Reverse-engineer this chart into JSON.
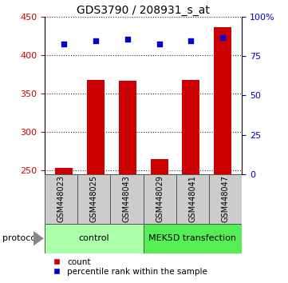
{
  "title": "GDS3790 / 208931_s_at",
  "samples": [
    "GSM448023",
    "GSM448025",
    "GSM448043",
    "GSM448029",
    "GSM448041",
    "GSM448047"
  ],
  "counts": [
    253,
    368,
    367,
    265,
    368,
    437
  ],
  "percentiles": [
    83,
    85,
    86,
    83,
    85,
    87
  ],
  "ylim_left": [
    245,
    450
  ],
  "ylim_right": [
    0,
    100
  ],
  "yticks_left": [
    250,
    300,
    350,
    400,
    450
  ],
  "yticks_right": [
    0,
    25,
    50,
    75,
    100
  ],
  "ytick_labels_right": [
    "0",
    "25",
    "50",
    "75",
    "100%"
  ],
  "bar_color": "#cc0000",
  "dot_color": "#0000cc",
  "bar_width": 0.55,
  "groups": [
    {
      "label": "control",
      "indices": [
        0,
        1,
        2
      ],
      "color": "#aaffaa"
    },
    {
      "label": "MEK5D transfection",
      "indices": [
        3,
        4,
        5
      ],
      "color": "#55ee55"
    }
  ],
  "protocol_label": "protocol",
  "legend_labels": [
    "count",
    "percentile rank within the sample"
  ],
  "legend_colors": [
    "#cc0000",
    "#0000cc"
  ],
  "grid_color": "#333333",
  "background_color": "#ffffff",
  "label_area_color": "#cccccc",
  "label_border_color": "#555555",
  "title_fontsize": 10
}
